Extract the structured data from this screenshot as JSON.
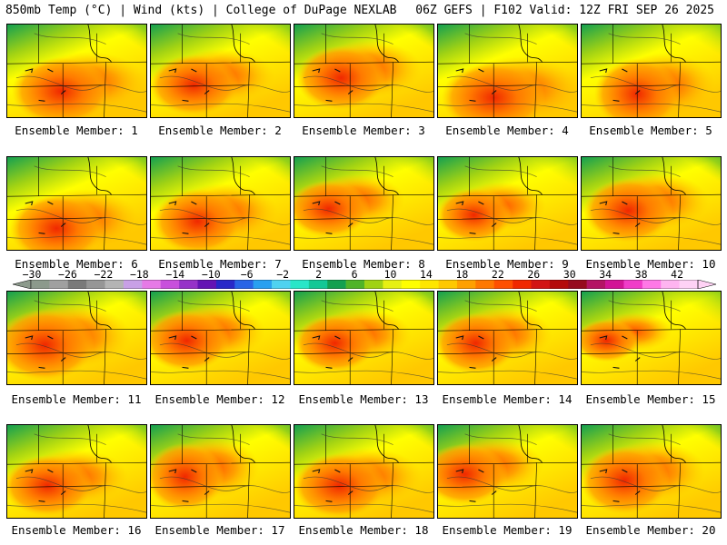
{
  "header": {
    "left": "850mb Temp (°C) | Wind (kts) | College of DuPage NEXLAB",
    "right": "06Z GEFS | F102 Valid: 12Z FRI SEP 26 2025"
  },
  "members": [
    {
      "label": "Ensemble Member: 1"
    },
    {
      "label": "Ensemble Member: 2"
    },
    {
      "label": "Ensemble Member: 3"
    },
    {
      "label": "Ensemble Member: 4"
    },
    {
      "label": "Ensemble Member: 5"
    },
    {
      "label": "Ensemble Member: 6"
    },
    {
      "label": "Ensemble Member: 7"
    },
    {
      "label": "Ensemble Member: 8"
    },
    {
      "label": "Ensemble Member: 9"
    },
    {
      "label": "Ensemble Member: 10"
    },
    {
      "label": "Ensemble Member: 11"
    },
    {
      "label": "Ensemble Member: 12"
    },
    {
      "label": "Ensemble Member: 13"
    },
    {
      "label": "Ensemble Member: 14"
    },
    {
      "label": "Ensemble Member: 15"
    },
    {
      "label": "Ensemble Member: 16"
    },
    {
      "label": "Ensemble Member: 17"
    },
    {
      "label": "Ensemble Member: 18"
    },
    {
      "label": "Ensemble Member: 19"
    },
    {
      "label": "Ensemble Member: 20"
    }
  ],
  "colorbar": {
    "ticks": [
      "−30",
      "−26",
      "−22",
      "−18",
      "−14",
      "−10",
      "−6",
      "−2",
      "2",
      "6",
      "10",
      "14",
      "18",
      "22",
      "26",
      "30",
      "34",
      "38",
      "42"
    ],
    "colors": [
      "#8c9a8c",
      "#a0a0a0",
      "#7a7a7a",
      "#969696",
      "#b4b4b4",
      "#c8a0e6",
      "#e67ae6",
      "#c850dc",
      "#9632c8",
      "#6414b4",
      "#2828c8",
      "#2864e6",
      "#28a0f0",
      "#50d2f0",
      "#28e6c8",
      "#14c896",
      "#14a050",
      "#50b428",
      "#a0d214",
      "#e6f014",
      "#ffff00",
      "#ffe600",
      "#ffc800",
      "#ffa000",
      "#ff7800",
      "#ff5000",
      "#f02800",
      "#d21414",
      "#b40a0a",
      "#960a1e",
      "#b41464",
      "#d21496",
      "#f03cc8",
      "#ff78e6",
      "#ffb4f0",
      "#ffd2f5"
    ]
  }
}
